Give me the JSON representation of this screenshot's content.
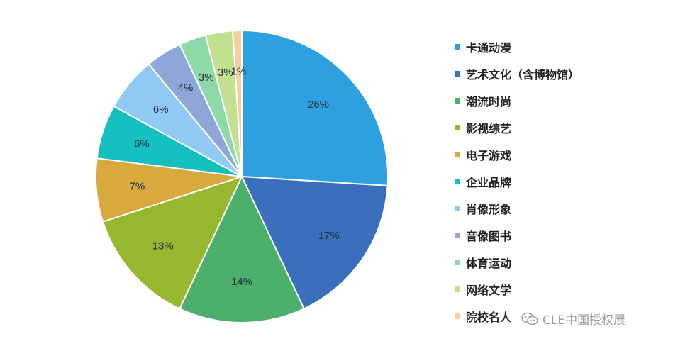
{
  "chart_data": {
    "type": "pie",
    "slices": [
      {
        "label": "卡通动漫",
        "value": 26,
        "display": "26%",
        "color": "#2e9fdf"
      },
      {
        "label": "艺术文化（含博物馆）",
        "value": 17,
        "display": "17%",
        "color": "#3a6fbd"
      },
      {
        "label": "潮流时尚",
        "value": 14,
        "display": "14%",
        "color": "#4caf6b"
      },
      {
        "label": "影视综艺",
        "value": 13,
        "display": "13%",
        "color": "#97b82e"
      },
      {
        "label": "电子游戏",
        "value": 7,
        "display": "7%",
        "color": "#d8a93c"
      },
      {
        "label": "企业品牌",
        "value": 6,
        "display": "6%",
        "color": "#16c0c1"
      },
      {
        "label": "肖像形象",
        "value": 6,
        "display": "6%",
        "color": "#90caf4"
      },
      {
        "label": "音像图书",
        "value": 4,
        "display": "4%",
        "color": "#8fa6d8"
      },
      {
        "label": "体育运动",
        "value": 3,
        "display": "3%",
        "color": "#8ed9a8"
      },
      {
        "label": "网络文学",
        "value": 3,
        "display": "3%",
        "color": "#c3e08e"
      },
      {
        "label": "院校名人",
        "value": 1,
        "display": "1%",
        "color": "#f5cf9f"
      }
    ],
    "legend_position": "right"
  },
  "watermark": {
    "text": "CLE中国授权展"
  }
}
